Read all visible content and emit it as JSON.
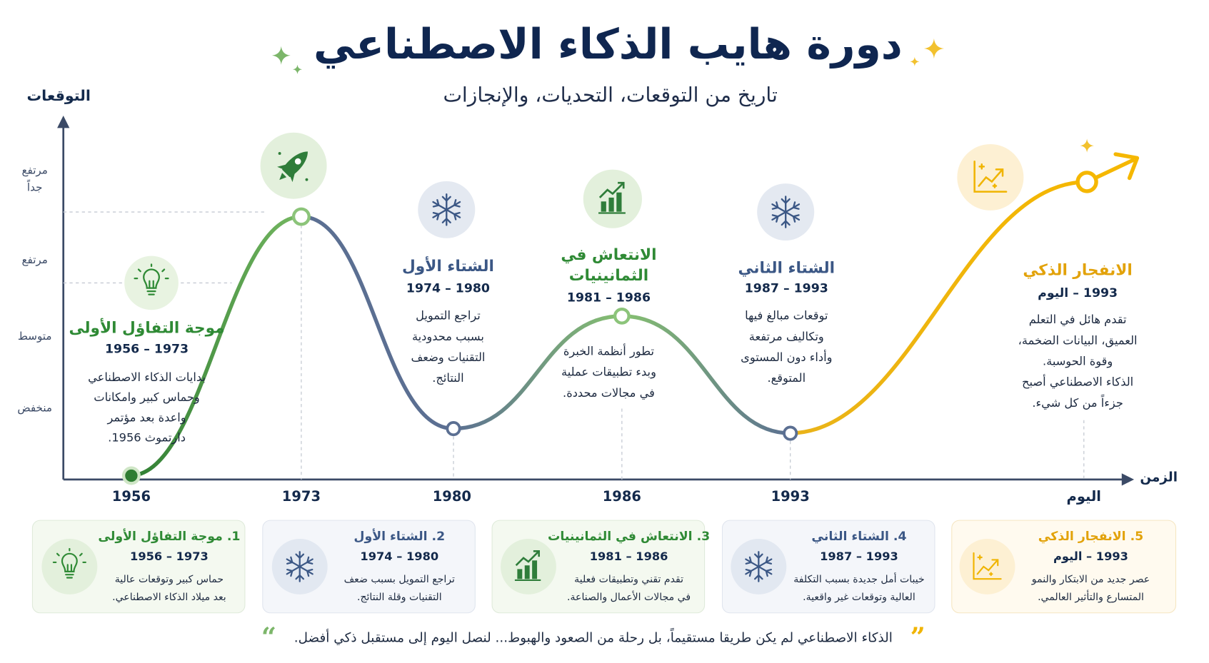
{
  "header": {
    "title": "دورة هايب الذكاء الاصطناعي",
    "subtitle": "تاريخ من التوقعات، التحديات، والإنجازات"
  },
  "axis": {
    "y_label": "التوقعات",
    "x_label": "الزمن",
    "levels": [
      "مرتفع جداً",
      "مرتفع",
      "متوسط",
      "منخفض"
    ],
    "years": [
      "1956",
      "1973",
      "1980",
      "1986",
      "1993",
      "اليوم"
    ]
  },
  "phases": [
    {
      "title": [
        "موجة التفاؤل الأولى"
      ],
      "period": "1956 – 1973",
      "desc": [
        "بدايات الذكاء الاصطناعي",
        "وحماس كبير وامكانات",
        "واعدة بعد مؤتمر",
        "دارتموث 1956."
      ]
    },
    {
      "title": [
        "الشتاء الأول"
      ],
      "period": "1974 – 1980",
      "desc": [
        "تراجع التمويل",
        "بسبب محدودية",
        "التقنيات وضعف",
        "النتائج."
      ]
    },
    {
      "title": [
        "الانتعاش في",
        "الثمانينيات"
      ],
      "period": "1981 – 1986",
      "desc": [
        "تطور أنظمة الخبرة",
        "وبدء تطبيقات عملية",
        "في مجالات محددة."
      ]
    },
    {
      "title": [
        "الشتاء الثاني"
      ],
      "period": "1987 – 1993",
      "desc": [
        "توقعات مبالغ فيها",
        "وتكاليف مرتفعة",
        "وأداء دون المستوى",
        "المتوقع."
      ]
    },
    {
      "title": [
        "الانفجار الذكي"
      ],
      "period": "1993 – اليوم",
      "desc": [
        "تقدم هائل في التعلم",
        "العميق، البيانات الضخمة،",
        "وقوة الحوسبة.",
        "الذكاء الاصطناعي أصبح",
        "جزءاً من كل شيء."
      ]
    }
  ],
  "cards": [
    {
      "title": "1. موجة التفاؤل الأولى",
      "period": "1956 – 1973",
      "desc": [
        "حماس كبير وتوقعات عالية",
        "بعد ميلاد الذكاء الاصطناعي."
      ]
    },
    {
      "title": "2. الشتاء الأول",
      "period": "1974 – 1980",
      "desc": [
        "تراجع التمويل بسبب ضعف",
        "التقنيات وقلة النتائج."
      ]
    },
    {
      "title": "3. الانتعاش في الثمانينيات",
      "period": "1981 – 1986",
      "desc": [
        "تقدم تقني وتطبيقات فعلية",
        "في مجالات الأعمال والصناعة."
      ]
    },
    {
      "title": "4. الشتاء الثاني",
      "period": "1987 – 1993",
      "desc": [
        "خيبات أمل جديدة بسبب التكلفة",
        "العالية وتوقعات غير واقعية."
      ]
    },
    {
      "title": "5. الانفجار الذكي",
      "period": "1993 – اليوم",
      "desc": [
        "عصر جديد من الابتكار والنمو",
        "المتسارع والتأثير العالمي."
      ]
    }
  ],
  "quote": "الذكاء الاصطناعي لم يكن طريقا مستقيماً، بل رحلة من الصعود والهبوط... لنصل اليوم إلى مستقبل ذكي أفضل."
}
